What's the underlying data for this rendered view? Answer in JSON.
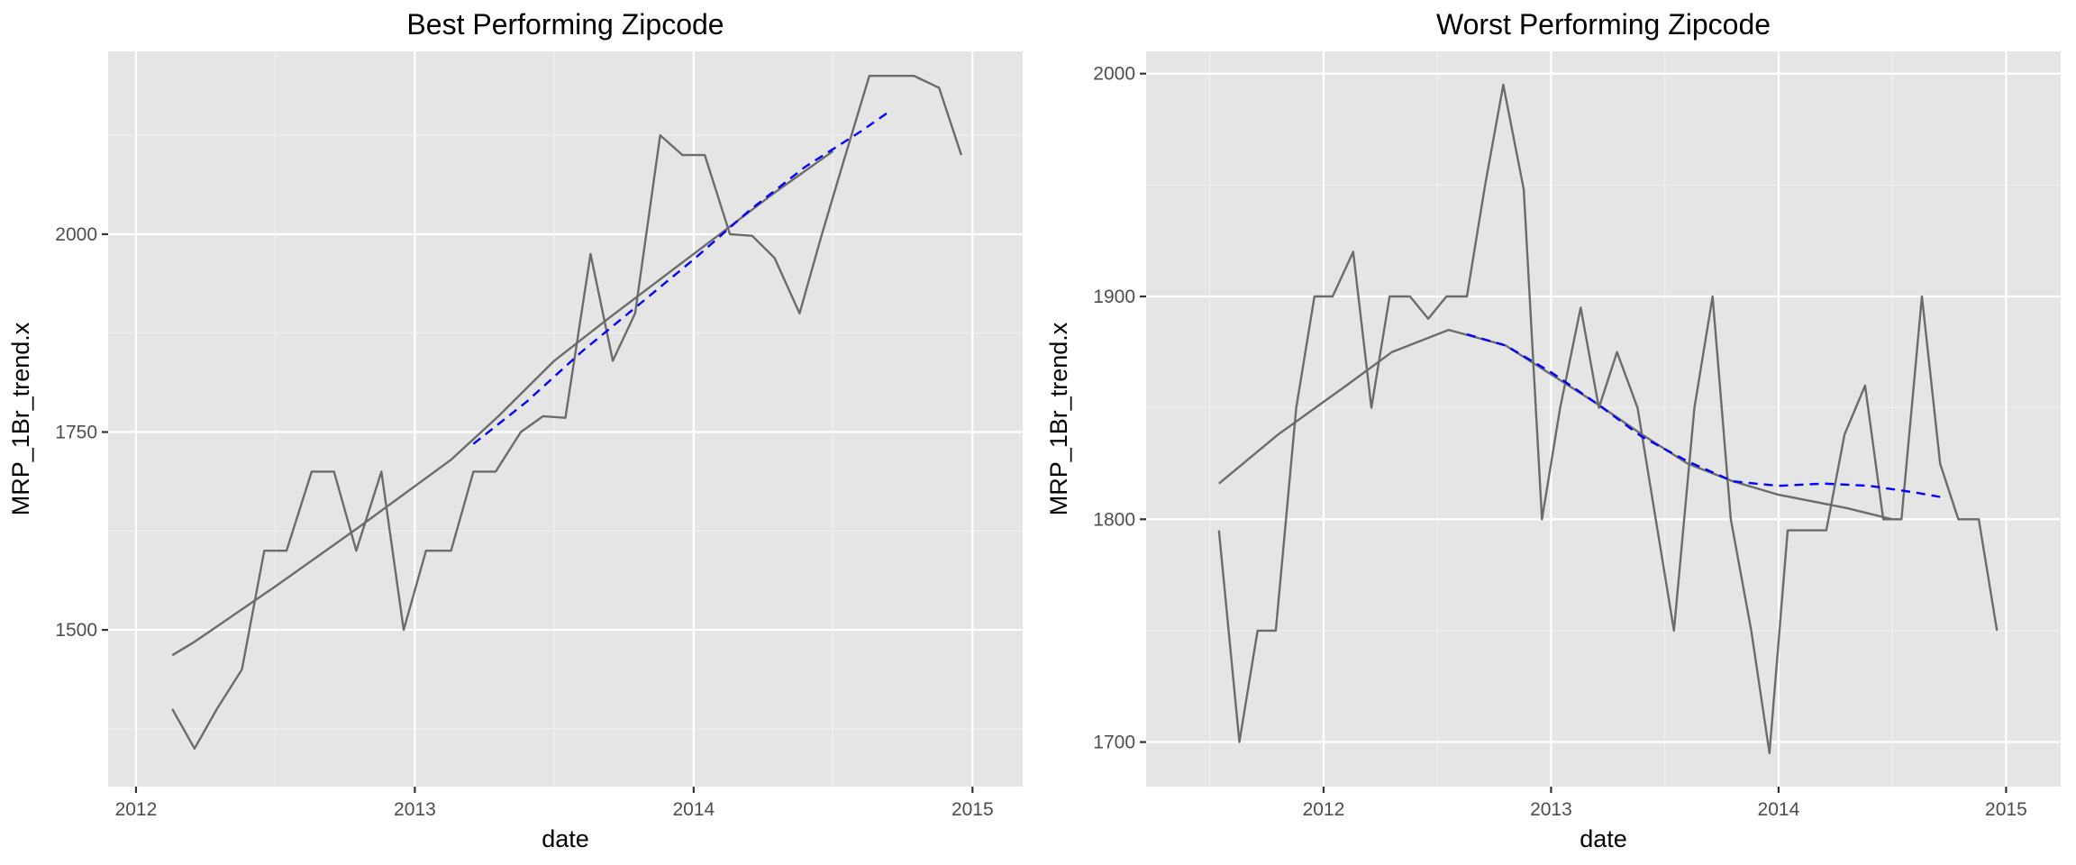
{
  "chart_data": [
    {
      "type": "line",
      "title": "Best Performing Zipcode",
      "xlabel": "date",
      "ylabel": "MRP_1Br_trend.x",
      "xlim": [
        2011.9,
        2015.18
      ],
      "ylim": [
        1302,
        2231
      ],
      "xticks": [
        2012,
        2013,
        2014,
        2015
      ],
      "xtick_labels": [
        "2012",
        "2013",
        "2014",
        "2015"
      ],
      "yticks": [
        1500,
        1750,
        2000
      ],
      "ytick_labels": [
        "1500",
        "1750",
        "2000"
      ],
      "y_minor": [
        1375,
        1625,
        1875,
        2125
      ],
      "grid": true,
      "series": [
        {
          "role": "observed",
          "color": "#6b6b6b",
          "x": [
            2012.13,
            2012.21,
            2012.29,
            2012.38,
            2012.46,
            2012.54,
            2012.63,
            2012.71,
            2012.79,
            2012.88,
            2012.96,
            2013.04,
            2013.13,
            2013.21,
            2013.29,
            2013.38,
            2013.46,
            2013.54,
            2013.63,
            2013.71,
            2013.79,
            2013.88,
            2013.96,
            2014.04,
            2014.13,
            2014.21,
            2014.29,
            2014.38,
            2014.46,
            2014.54,
            2014.63,
            2014.71,
            2014.79,
            2014.88,
            2014.96
          ],
          "y": [
            1400,
            1350,
            1400,
            1450,
            1600,
            1600,
            1700,
            1700,
            1600,
            1700,
            1500,
            1600,
            1600,
            1700,
            1700,
            1750,
            1770,
            1768,
            1975,
            1840,
            1900,
            2125,
            2100,
            2100,
            2000,
            1998,
            1970,
            1900,
            2000,
            2095,
            2200,
            2200,
            2200,
            2185,
            2100
          ]
        },
        {
          "role": "trend",
          "color": "#6b6b6b",
          "x": [
            2012.13,
            2012.21,
            2012.5,
            2012.8,
            2013.13,
            2013.3,
            2013.5,
            2013.7,
            2014.0,
            2014.3,
            2014.5
          ],
          "y": [
            1468,
            1485,
            1555,
            1630,
            1715,
            1770,
            1840,
            1895,
            1975,
            2055,
            2105
          ]
        },
        {
          "role": "forecast",
          "color": "#0000ff",
          "x": [
            2013.21,
            2013.4,
            2013.6,
            2013.8,
            2014.0,
            2014.2,
            2014.4,
            2014.6,
            2014.71
          ],
          "y": [
            1735,
            1788,
            1852,
            1910,
            1968,
            2030,
            2085,
            2130,
            2157
          ]
        }
      ]
    },
    {
      "type": "line",
      "title": "Worst Performing Zipcode",
      "xlabel": "date",
      "ylabel": "MRP_1Br_trend.x",
      "xlim": [
        2011.22,
        2015.24
      ],
      "ylim": [
        1680,
        2010
      ],
      "xticks": [
        2012,
        2013,
        2014,
        2015
      ],
      "xtick_labels": [
        "2012",
        "2013",
        "2014",
        "2015"
      ],
      "yticks": [
        1700,
        1800,
        1900,
        2000
      ],
      "ytick_labels": [
        "1700",
        "1800",
        "1900",
        "2000"
      ],
      "y_minor": [
        1750,
        1850,
        1950
      ],
      "grid": true,
      "series": [
        {
          "role": "observed",
          "color": "#6b6b6b",
          "x": [
            2011.54,
            2011.63,
            2011.71,
            2011.79,
            2011.88,
            2011.96,
            2012.04,
            2012.13,
            2012.21,
            2012.29,
            2012.38,
            2012.46,
            2012.54,
            2012.63,
            2012.71,
            2012.79,
            2012.88,
            2012.96,
            2013.04,
            2013.13,
            2013.21,
            2013.29,
            2013.38,
            2013.46,
            2013.54,
            2013.63,
            2013.71,
            2013.79,
            2013.88,
            2013.96,
            2014.04,
            2014.13,
            2014.21,
            2014.29,
            2014.38,
            2014.46,
            2014.54,
            2014.63,
            2014.71,
            2014.79,
            2014.88,
            2014.96
          ],
          "y": [
            1795,
            1700,
            1750,
            1750,
            1850,
            1900,
            1900,
            1920,
            1850,
            1900,
            1900,
            1890,
            1900,
            1900,
            1950,
            1995,
            1948,
            1800,
            1850,
            1895,
            1850,
            1875,
            1850,
            1800,
            1750,
            1850,
            1900,
            1800,
            1750,
            1695,
            1795,
            1795,
            1795,
            1838,
            1860,
            1800,
            1800,
            1900,
            1825,
            1800,
            1800,
            1750
          ]
        },
        {
          "role": "trend",
          "color": "#6b6b6b",
          "x": [
            2011.54,
            2011.8,
            2012.1,
            2012.3,
            2012.55,
            2012.8,
            2013.0,
            2013.2,
            2013.4,
            2013.6,
            2013.8,
            2014.0,
            2014.3,
            2014.5
          ],
          "y": [
            1816,
            1838,
            1860,
            1875,
            1885,
            1878,
            1865,
            1852,
            1838,
            1825,
            1817,
            1811,
            1805,
            1800
          ]
        },
        {
          "role": "forecast",
          "color": "#0000ff",
          "x": [
            2012.63,
            2012.8,
            2013.0,
            2013.2,
            2013.4,
            2013.6,
            2013.8,
            2014.0,
            2014.2,
            2014.4,
            2014.6,
            2014.71
          ],
          "y": [
            1883,
            1878,
            1866,
            1852,
            1837,
            1826,
            1817,
            1815,
            1816,
            1815,
            1812,
            1810
          ]
        }
      ]
    }
  ]
}
